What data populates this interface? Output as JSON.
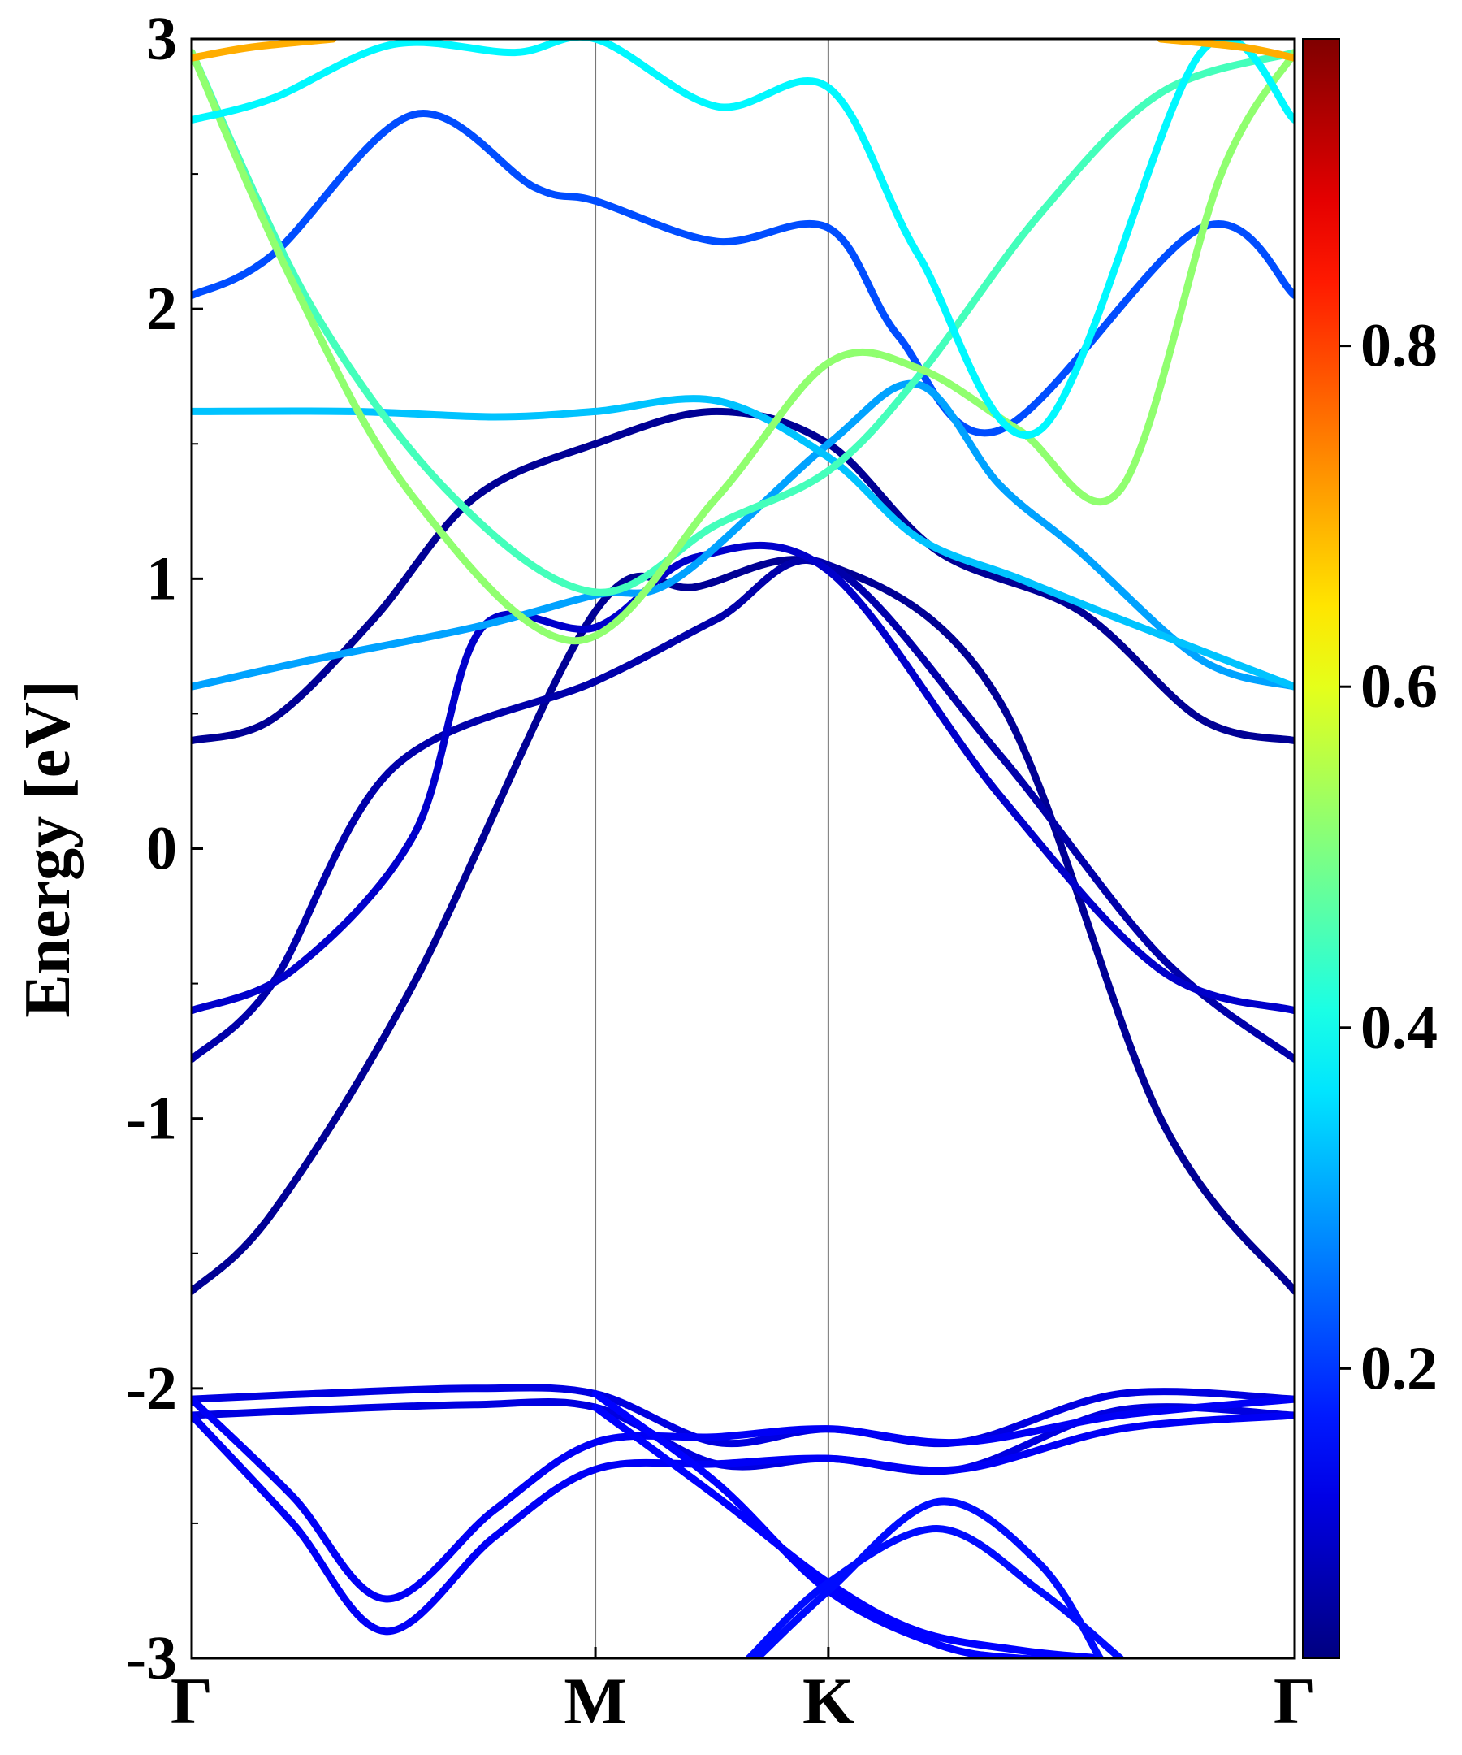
{
  "chart_data": {
    "type": "line",
    "title": "",
    "xlabel": "",
    "ylabel": "Energy [eV]",
    "ylim": [
      -3,
      3
    ],
    "xlim": [
      0,
      2.732
    ],
    "x_ticks": [
      {
        "label": "Γ",
        "x": 0
      },
      {
        "label": "M",
        "x": 1.0
      },
      {
        "label": "K",
        "x": 1.577
      },
      {
        "label": "Γ",
        "x": 2.732
      }
    ],
    "y_ticks": [
      {
        "label": "3",
        "value": 3
      },
      {
        "label": "2",
        "value": 2
      },
      {
        "label": "1",
        "value": 1
      },
      {
        "label": "0",
        "value": 0
      },
      {
        "label": "-1",
        "value": -1
      },
      {
        "label": "-2",
        "value": -2
      },
      {
        "label": "-3",
        "value": -3
      }
    ],
    "y_minor_ticks": [
      -2.5,
      -1.5,
      -0.5,
      0.5,
      1.5,
      2.5
    ],
    "vertical_lines": [
      1.0,
      1.577
    ],
    "grid": false,
    "legend": "none",
    "colorbar": {
      "colormap": "jet",
      "range": [
        0.03,
        0.98
      ],
      "ticks": [
        {
          "label": "0.2",
          "value": 0.2
        },
        {
          "label": "0.4",
          "value": 0.4
        },
        {
          "label": "0.6",
          "value": 0.6
        },
        {
          "label": "0.8",
          "value": 0.8
        }
      ]
    },
    "series": [
      {
        "weight": 0.05,
        "x": [
          0,
          0.2,
          0.55,
          1.0,
          1.25,
          1.577,
          2.0,
          2.4,
          2.732
        ],
        "y": [
          -1.64,
          -1.35,
          -0.5,
          0.88,
          0.97,
          1.05,
          0.55,
          -1.0,
          -1.64
        ]
      },
      {
        "weight": 0.07,
        "x": [
          0,
          0.2,
          0.5,
          1.0,
          1.3,
          1.577,
          2.0,
          2.4,
          2.732
        ],
        "y": [
          -0.78,
          -0.5,
          0.3,
          0.62,
          0.85,
          1.05,
          0.35,
          -0.4,
          -0.78
        ]
      },
      {
        "weight": 0.1,
        "x": [
          0,
          0.25,
          0.55,
          0.72,
          1.0,
          1.25,
          1.577,
          2.0,
          2.4,
          2.732
        ],
        "y": [
          -0.6,
          -0.45,
          0.05,
          0.82,
          0.82,
          1.08,
          1.03,
          0.2,
          -0.45,
          -0.6
        ]
      },
      {
        "weight": 0.05,
        "x": [
          0,
          0.2,
          0.45,
          0.7,
          1.0,
          1.3,
          1.577,
          1.85,
          2.2,
          2.5,
          2.732
        ],
        "y": [
          0.4,
          0.48,
          0.85,
          1.3,
          1.5,
          1.62,
          1.5,
          1.1,
          0.88,
          0.48,
          0.4
        ]
      },
      {
        "weight": 0.22,
        "x": [
          0,
          0.2,
          0.55,
          0.85,
          1.0,
          1.3,
          1.577,
          1.75,
          2.0,
          2.5,
          2.732
        ],
        "y": [
          2.05,
          2.2,
          2.72,
          2.45,
          2.4,
          2.25,
          2.3,
          1.9,
          1.55,
          2.3,
          2.05
        ]
      },
      {
        "weight": 0.3,
        "x": [
          0,
          0.3,
          0.7,
          1.0,
          1.2,
          1.577,
          1.8,
          2.0,
          2.2,
          2.5,
          2.732
        ],
        "y": [
          0.6,
          0.7,
          0.82,
          0.94,
          1.0,
          1.5,
          1.72,
          1.35,
          1.1,
          0.7,
          0.6
        ]
      },
      {
        "weight": 0.33,
        "x": [
          0,
          0.4,
          0.75,
          1.0,
          1.3,
          1.577,
          1.8,
          2.05,
          2.3,
          2.732
        ],
        "y": [
          1.62,
          1.62,
          1.6,
          1.62,
          1.66,
          1.45,
          1.15,
          1.0,
          0.85,
          0.6
        ]
      },
      {
        "weight": 0.45,
        "x": [
          0,
          0.3,
          0.65,
          1.0,
          1.3,
          1.577,
          1.8,
          2.1,
          2.4,
          2.732
        ],
        "y": [
          2.95,
          2.0,
          1.3,
          0.95,
          1.2,
          1.4,
          1.75,
          2.35,
          2.8,
          2.95
        ]
      },
      {
        "weight": 0.52,
        "x": [
          0,
          0.25,
          0.55,
          0.95,
          1.3,
          1.577,
          1.8,
          2.05,
          2.3,
          2.55,
          2.732
        ],
        "y": [
          2.95,
          2.1,
          1.3,
          0.77,
          1.3,
          1.8,
          1.78,
          1.55,
          1.33,
          2.5,
          2.95
        ]
      },
      {
        "weight": 0.38,
        "x": [
          0,
          0.2,
          0.5,
          0.8,
          1.0,
          1.3,
          1.577,
          1.8,
          2.1,
          2.5,
          2.732
        ],
        "y": [
          2.7,
          2.78,
          2.98,
          2.95,
          3.0,
          2.75,
          2.82,
          2.2,
          1.55,
          2.95,
          2.7
        ]
      },
      {
        "weight": 0.7,
        "x": [
          0,
          0.15,
          0.35
        ],
        "y": [
          2.93,
          2.97,
          3.0
        ]
      },
      {
        "weight": 0.7,
        "x": [
          2.4,
          2.6,
          2.732
        ],
        "y": [
          3.0,
          2.97,
          2.93
        ]
      },
      {
        "weight": 0.12,
        "x": [
          0,
          0.3,
          0.7,
          1.0,
          1.3,
          1.577,
          1.9,
          2.3,
          2.732
        ],
        "y": [
          -2.04,
          -2.02,
          -2.0,
          -2.02,
          -2.2,
          -2.15,
          -2.2,
          -2.02,
          -2.04
        ]
      },
      {
        "weight": 0.12,
        "x": [
          0,
          0.3,
          0.7,
          1.0,
          1.3,
          1.577,
          1.9,
          2.3,
          2.732
        ],
        "y": [
          -2.1,
          -2.08,
          -2.06,
          -2.07,
          -2.28,
          -2.26,
          -2.3,
          -2.08,
          -2.1
        ]
      },
      {
        "weight": 0.14,
        "x": [
          0,
          0.25,
          0.48,
          0.75,
          1.0,
          1.3,
          1.577,
          1.9,
          2.3,
          2.732
        ],
        "y": [
          -2.04,
          -2.4,
          -2.78,
          -2.45,
          -2.2,
          -2.18,
          -2.15,
          -2.2,
          -2.1,
          -2.04
        ]
      },
      {
        "weight": 0.14,
        "x": [
          0,
          0.25,
          0.48,
          0.75,
          1.0,
          1.3,
          1.577,
          1.9,
          2.3,
          2.732
        ],
        "y": [
          -2.1,
          -2.5,
          -2.9,
          -2.55,
          -2.3,
          -2.28,
          -2.26,
          -2.3,
          -2.15,
          -2.1
        ]
      },
      {
        "weight": 0.15,
        "x": [
          1.0,
          1.3,
          1.577,
          1.85,
          2.05,
          2.25
        ],
        "y": [
          -2.02,
          -2.35,
          -2.75,
          -2.95,
          -3.0,
          -3.0
        ]
      },
      {
        "weight": 0.15,
        "x": [
          1.0,
          1.3,
          1.577,
          1.8,
          2.05,
          2.25
        ],
        "y": [
          -2.07,
          -2.4,
          -2.72,
          -2.9,
          -2.97,
          -3.0
        ]
      },
      {
        "weight": 0.16,
        "x": [
          1.4,
          1.577,
          1.85,
          2.1,
          2.25
        ],
        "y": [
          -3.0,
          -2.75,
          -2.42,
          -2.65,
          -3.0
        ]
      },
      {
        "weight": 0.16,
        "x": [
          1.38,
          1.577,
          1.85,
          2.1,
          2.3
        ],
        "y": [
          -3.0,
          -2.72,
          -2.52,
          -2.75,
          -3.0
        ]
      }
    ]
  }
}
